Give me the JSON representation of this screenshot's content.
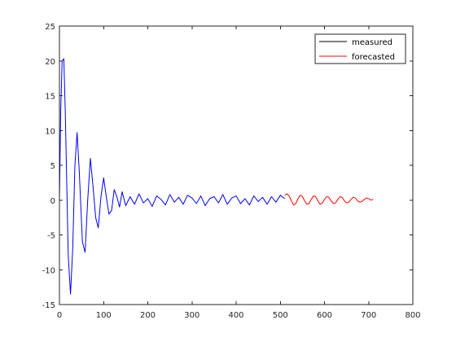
{
  "chart_data": {
    "type": "line",
    "title": "",
    "xlabel": "",
    "ylabel": "",
    "xlim": [
      0,
      800
    ],
    "ylim": [
      -15,
      25
    ],
    "xticks": [
      0,
      100,
      200,
      300,
      400,
      500,
      600,
      700,
      800
    ],
    "yticks": [
      -15,
      -10,
      -5,
      0,
      5,
      10,
      15,
      20,
      25
    ],
    "grid": false,
    "box": true,
    "legend_position": "top-right",
    "legend_entries": [
      {
        "label": "measured",
        "color": "#0000ff",
        "legend_line_color": "#000000"
      },
      {
        "label": "forecasted",
        "color": "#ff0000",
        "legend_line_color": "#ff0000"
      }
    ],
    "series": [
      {
        "name": "measured",
        "color": "#0000ff",
        "x": [
          0,
          3,
          6,
          10,
          13,
          20,
          25,
          30,
          35,
          40,
          45,
          52,
          58,
          64,
          70,
          76,
          82,
          88,
          94,
          100,
          106,
          112,
          118,
          124,
          130,
          136,
          142,
          150,
          160,
          170,
          180,
          190,
          200,
          210,
          220,
          230,
          240,
          250,
          260,
          270,
          280,
          290,
          300,
          310,
          320,
          330,
          340,
          350,
          360,
          370,
          380,
          390,
          400,
          410,
          420,
          430,
          440,
          450,
          460,
          470,
          480,
          490,
          500,
          510
        ],
        "values": [
          0,
          13,
          20,
          20.3,
          13,
          -8,
          -13.5,
          -7,
          5,
          9.7,
          4,
          -6,
          -7.5,
          0,
          6,
          2,
          -2.5,
          -4,
          0.5,
          3.2,
          0.5,
          -2,
          -1.5,
          1.5,
          0.5,
          -1,
          1.2,
          -0.8,
          0.5,
          -0.6,
          0.9,
          -0.4,
          0.2,
          -0.9,
          0.6,
          0.1,
          -0.7,
          0.8,
          -0.3,
          0.4,
          -0.6,
          0.7,
          0.3,
          -0.5,
          0.6,
          -0.8,
          0.2,
          0.5,
          -0.4,
          0.8,
          -0.6,
          0.3,
          0.6,
          -0.5,
          0.2,
          -0.7,
          0.6,
          -0.2,
          0.4,
          -0.6,
          0.5,
          -0.3,
          0.7,
          0.2
        ]
      },
      {
        "name": "forecasted",
        "color": "#ff0000",
        "x": [
          510,
          515,
          520,
          525,
          530,
          535,
          540,
          545,
          550,
          555,
          560,
          565,
          570,
          575,
          580,
          585,
          590,
          595,
          600,
          605,
          610,
          615,
          620,
          625,
          630,
          635,
          640,
          645,
          650,
          655,
          660,
          665,
          670,
          675,
          680,
          685,
          690,
          695,
          700,
          705,
          710
        ],
        "values": [
          0.7,
          0.9,
          0.6,
          -0.1,
          -0.7,
          -0.5,
          0.2,
          0.7,
          0.5,
          -0.1,
          -0.6,
          -0.5,
          0.1,
          0.6,
          0.5,
          -0.1,
          -0.6,
          -0.4,
          0.1,
          0.5,
          0.4,
          -0.1,
          -0.5,
          -0.4,
          0.1,
          0.5,
          0.4,
          -0.1,
          -0.4,
          -0.3,
          0.1,
          0.4,
          0.3,
          -0.1,
          -0.3,
          -0.2,
          0.1,
          0.3,
          0.2,
          0.0,
          0.1
        ]
      }
    ]
  }
}
